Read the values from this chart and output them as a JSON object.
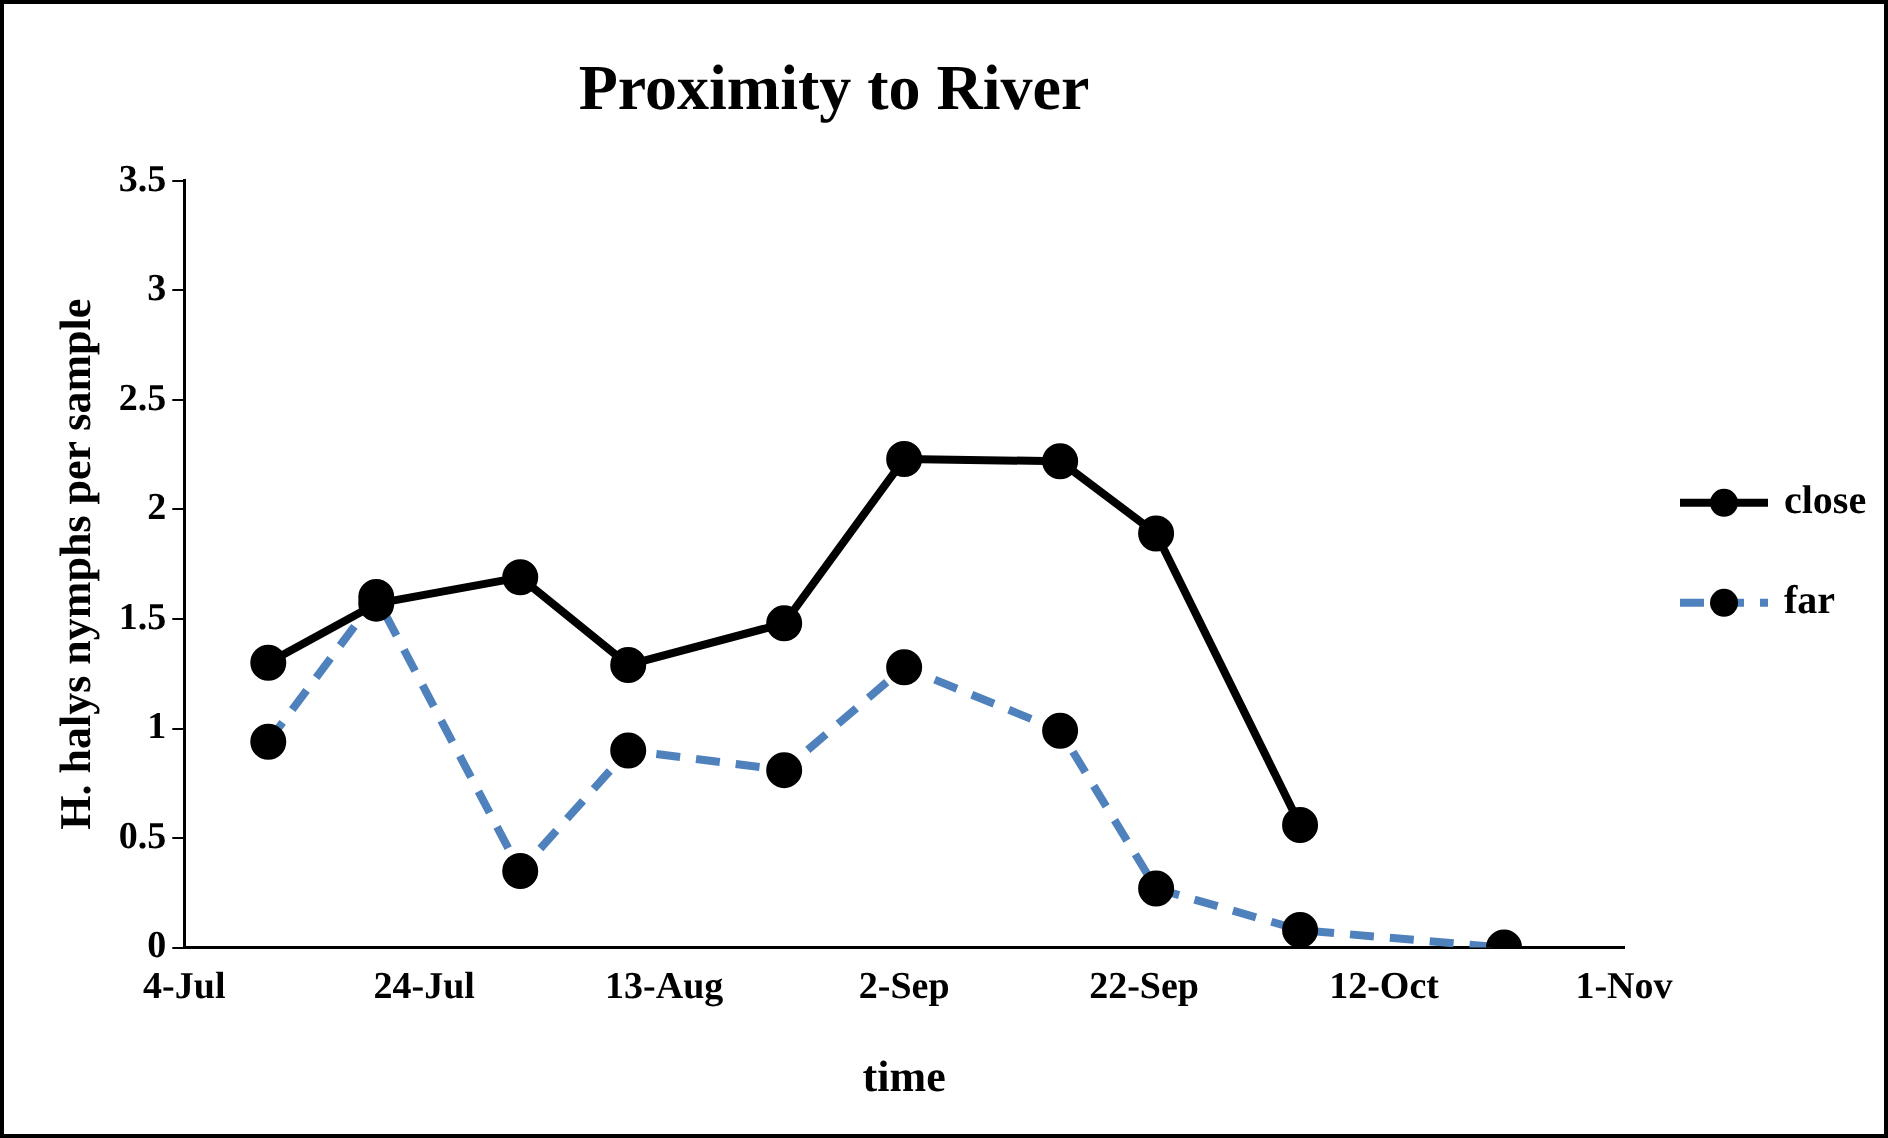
{
  "chart_data": {
    "type": "line",
    "title": "Proximity to River",
    "xlabel": "time",
    "ylabel": "H. halys nymphs per sample",
    "xlim": [
      "--07-04",
      "--11-01"
    ],
    "xticks": [
      {
        "value": "--07-04",
        "label": "4-Jul"
      },
      {
        "value": "--07-24",
        "label": "24-Jul"
      },
      {
        "value": "--08-13",
        "label": "13-Aug"
      },
      {
        "value": "--09-02",
        "label": "2-Sep"
      },
      {
        "value": "--09-22",
        "label": "22-Sep"
      },
      {
        "value": "--10-12",
        "label": "12-Oct"
      },
      {
        "value": "--11-01",
        "label": "1-Nov"
      }
    ],
    "ylim": [
      0,
      3.5
    ],
    "yticks": [
      0,
      0.5,
      1,
      1.5,
      2,
      2.5,
      3,
      3.5
    ],
    "grid": false,
    "legend": "right",
    "marker": "circle",
    "series": [
      {
        "name": "close",
        "color": "#000000",
        "line_style": "solid",
        "x": [
          "--07-11",
          "--07-20",
          "--08-01",
          "--08-10",
          "--08-23",
          "--09-02",
          "--09-15",
          "--09-23",
          "--10-05"
        ],
        "values": [
          1.3,
          1.57,
          1.69,
          1.29,
          1.48,
          2.23,
          2.22,
          1.89,
          0.56
        ]
      },
      {
        "name": "far",
        "color": "#4f81bd",
        "line_style": "dashed",
        "x": [
          "--07-11",
          "--07-20",
          "--08-01",
          "--08-10",
          "--08-23",
          "--09-02",
          "--09-15",
          "--09-23",
          "--10-05",
          "--10-22"
        ],
        "values": [
          0.94,
          1.6,
          0.35,
          0.9,
          0.81,
          1.28,
          0.99,
          0.27,
          0.08,
          0
        ]
      }
    ]
  }
}
